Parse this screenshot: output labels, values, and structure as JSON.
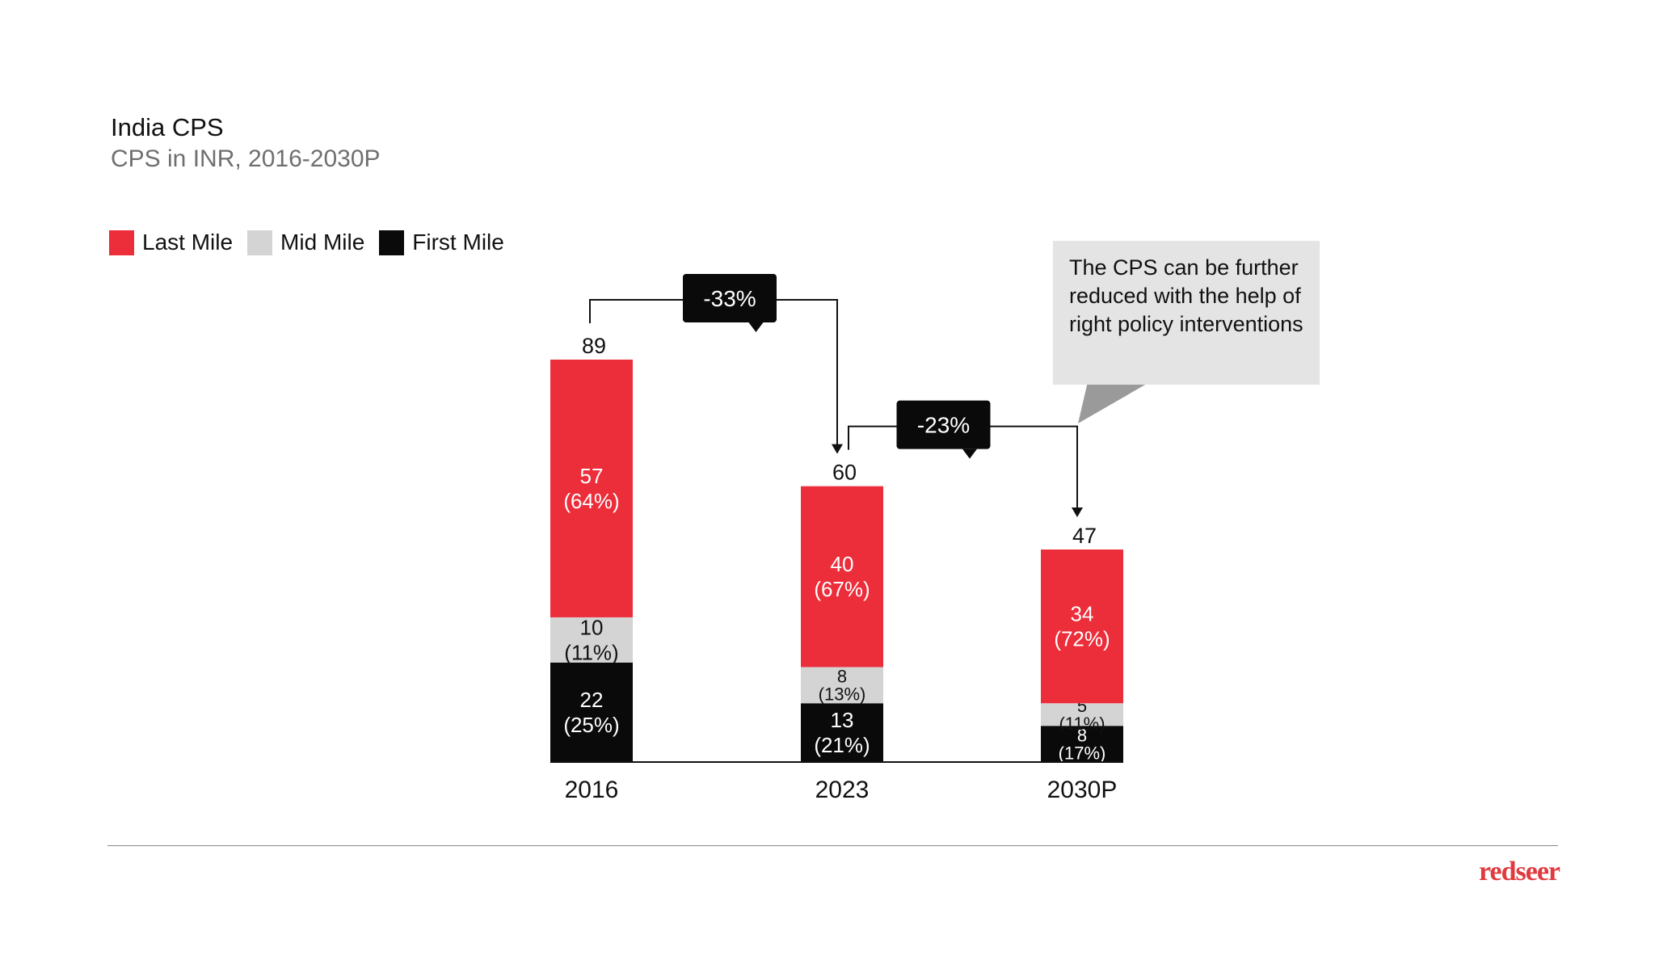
{
  "header": {
    "title": "India CPS",
    "subtitle": "CPS in INR, 2016-2030P"
  },
  "legend": [
    {
      "label": "Last Mile",
      "color": "#ec2d3a"
    },
    {
      "label": "Mid Mile",
      "color": "#d4d4d4"
    },
    {
      "label": "First Mile",
      "color": "#0a0a0a"
    }
  ],
  "callout": {
    "text": "The CPS can be further reduced with the help of right policy interventions"
  },
  "brand": {
    "logo_text": "redseer",
    "color": "#e03a3e"
  },
  "chart_data": {
    "type": "bar",
    "stacked": true,
    "categories": [
      "2016",
      "2023",
      "2030P"
    ],
    "series": [
      {
        "name": "First Mile",
        "color": "#0a0a0a",
        "values": [
          22,
          13,
          8
        ],
        "labels": [
          "22\n(25%)",
          "13\n(21%)",
          "8\n(17%)"
        ]
      },
      {
        "name": "Mid Mile",
        "color": "#d4d4d4",
        "values": [
          10,
          8,
          5
        ],
        "labels": [
          "10\n(11%)",
          "8\n(13%)",
          "5\n(11%)"
        ]
      },
      {
        "name": "Last Mile",
        "color": "#ec2d3a",
        "values": [
          57,
          40,
          34
        ],
        "labels": [
          "57\n(64%)",
          "40\n(67%)",
          "34\n(72%)"
        ]
      }
    ],
    "totals": [
      89,
      60,
      47
    ],
    "changes": [
      {
        "from": "2016",
        "to": "2023",
        "label": "-33%"
      },
      {
        "from": "2023",
        "to": "2030P",
        "label": "-23%"
      }
    ],
    "title": "India CPS",
    "ylabel": "CPS in INR",
    "ylim": [
      0,
      89
    ]
  }
}
